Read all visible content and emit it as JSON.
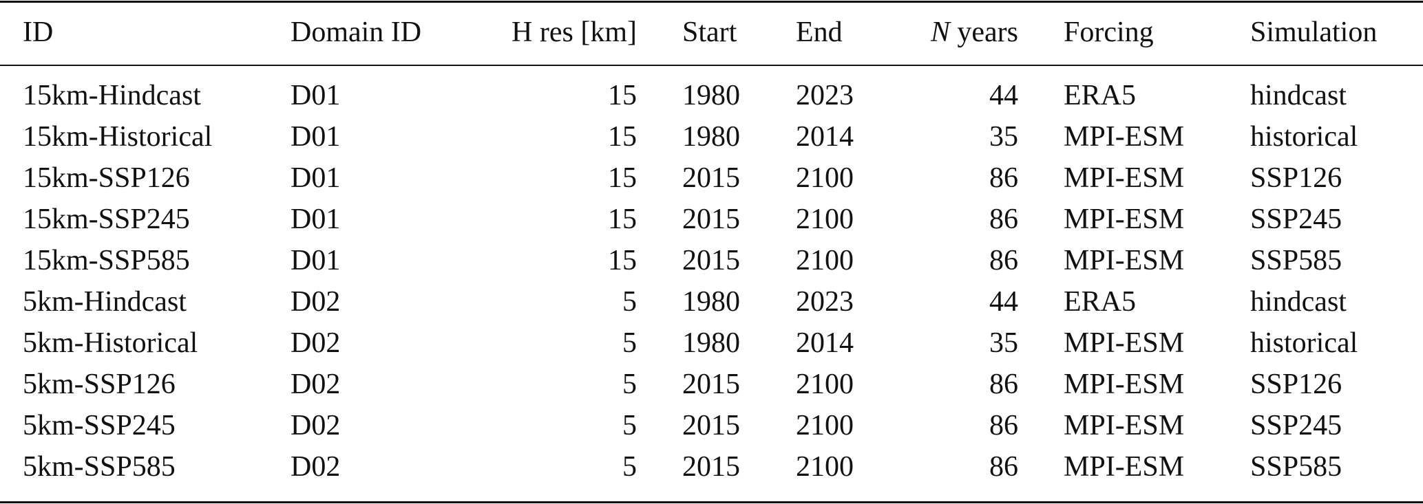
{
  "table": {
    "columns": [
      {
        "label": "ID",
        "align": "left"
      },
      {
        "label": "Domain ID",
        "align": "left"
      },
      {
        "label": "H res [km]",
        "align": "right"
      },
      {
        "label": "Start",
        "align": "left"
      },
      {
        "label": "End",
        "align": "left"
      },
      {
        "label_italic": "N",
        "label": " years",
        "align": "right"
      },
      {
        "label": "Forcing",
        "align": "left"
      },
      {
        "label": "Simulation",
        "align": "left"
      }
    ],
    "rows": [
      [
        "15km-Hindcast",
        "D01",
        "15",
        "1980",
        "2023",
        "44",
        "ERA5",
        "hindcast"
      ],
      [
        "15km-Historical",
        "D01",
        "15",
        "1980",
        "2014",
        "35",
        "MPI-ESM",
        "historical"
      ],
      [
        "15km-SSP126",
        "D01",
        "15",
        "2015",
        "2100",
        "86",
        "MPI-ESM",
        "SSP126"
      ],
      [
        "15km-SSP245",
        "D01",
        "15",
        "2015",
        "2100",
        "86",
        "MPI-ESM",
        "SSP245"
      ],
      [
        "15km-SSP585",
        "D01",
        "15",
        "2015",
        "2100",
        "86",
        "MPI-ESM",
        "SSP585"
      ],
      [
        "5km-Hindcast",
        "D02",
        "5",
        "1980",
        "2023",
        "44",
        "ERA5",
        "hindcast"
      ],
      [
        "5km-Historical",
        "D02",
        "5",
        "1980",
        "2014",
        "35",
        "MPI-ESM",
        "historical"
      ],
      [
        "5km-SSP126",
        "D02",
        "5",
        "2015",
        "2100",
        "86",
        "MPI-ESM",
        "SSP126"
      ],
      [
        "5km-SSP245",
        "D02",
        "5",
        "2015",
        "2100",
        "86",
        "MPI-ESM",
        "SSP245"
      ],
      [
        "5km-SSP585",
        "D02",
        "5",
        "2015",
        "2100",
        "86",
        "MPI-ESM",
        "SSP585"
      ]
    ]
  }
}
